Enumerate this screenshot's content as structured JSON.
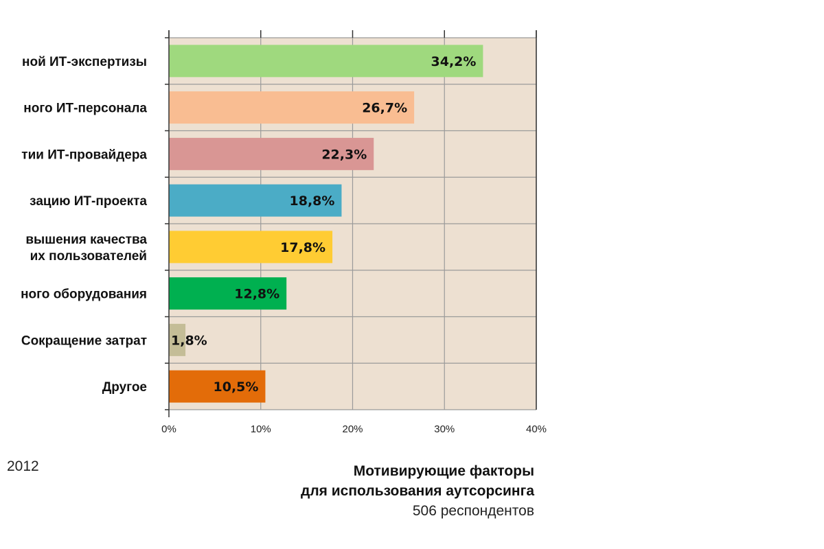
{
  "chart_data": {
    "type": "bar",
    "orientation": "horizontal",
    "categories": [
      [
        "ной ИТ-экспертизы"
      ],
      [
        "ного ИТ-персонала"
      ],
      [
        "тии ИТ-провайдера"
      ],
      [
        "зацию ИТ-проекта"
      ],
      [
        "вышения качества",
        "их пользователей"
      ],
      [
        "ного оборудования"
      ],
      [
        "Сокращение затрат"
      ],
      [
        "Другое"
      ]
    ],
    "values": [
      34.2,
      26.7,
      22.3,
      18.8,
      17.8,
      12.8,
      1.8,
      10.5
    ],
    "value_labels": [
      "34,2%",
      "26,7%",
      "22,3%",
      "18,8%",
      "17,8%",
      "12,8%",
      "1,8%",
      "10,5%"
    ],
    "colors": [
      "#9fd97e",
      "#f9bd92",
      "#d99694",
      "#4bacc6",
      "#ffcc33",
      "#00b050",
      "#c4bd97",
      "#e36c09"
    ],
    "xlim": [
      0,
      40
    ],
    "xticks": [
      0,
      10,
      20,
      30,
      40
    ],
    "xtick_labels": [
      "0%",
      "10%",
      "20%",
      "30%",
      "40%"
    ],
    "grid": true,
    "plot_background": "#ede0d1",
    "grid_color": "#9a9a9a"
  },
  "footer": {
    "year": "2012",
    "title_line1": "Мотивирующие факторы",
    "title_line2": "для использования аутсорсинга",
    "respondents": "506 респондентов"
  }
}
